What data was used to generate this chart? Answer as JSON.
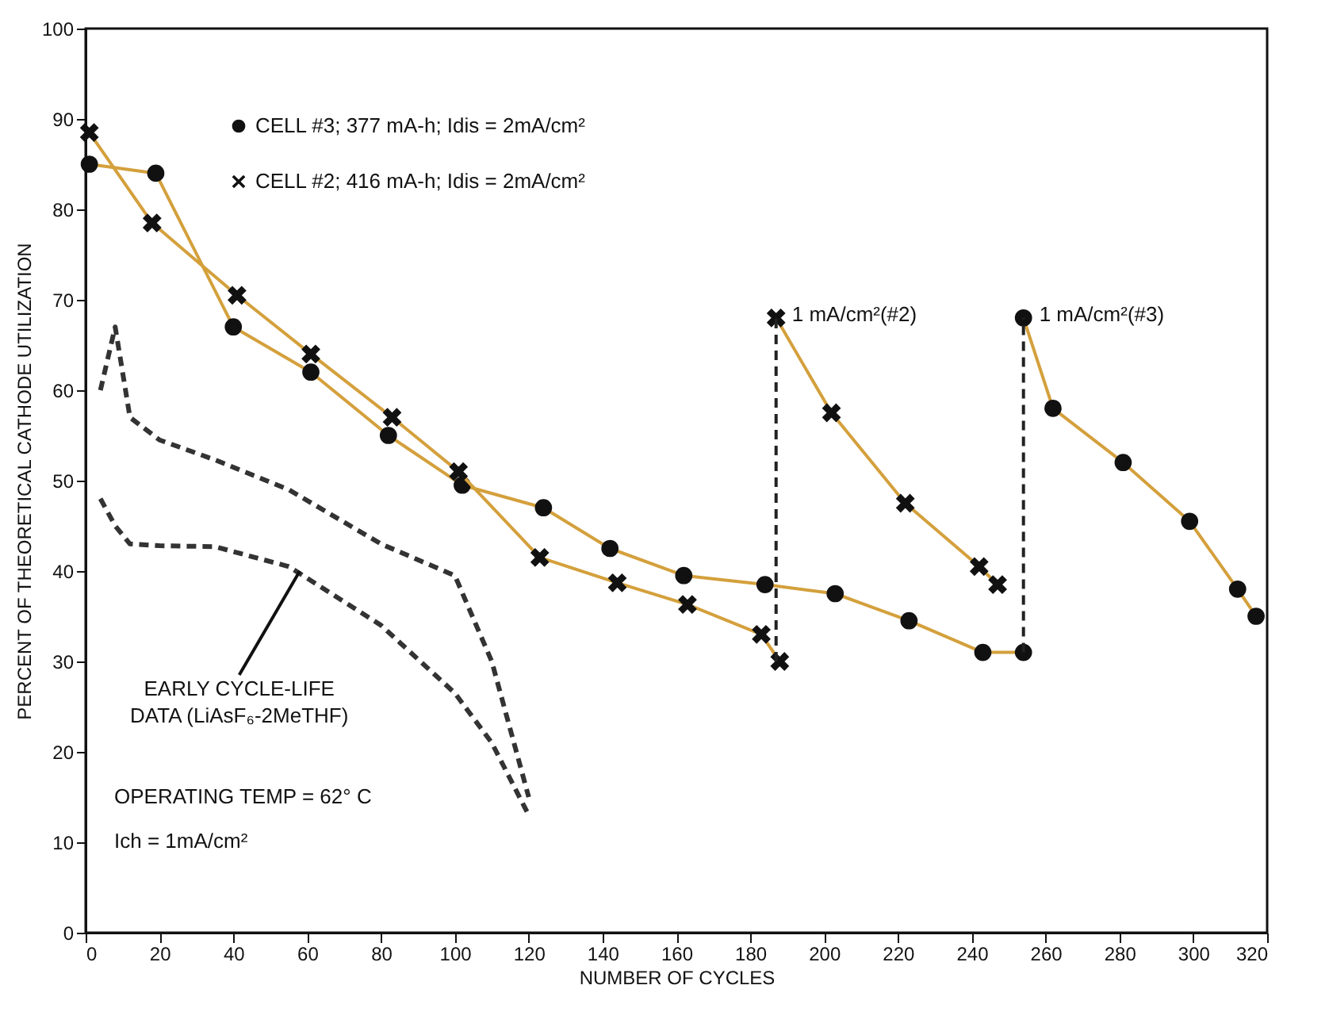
{
  "chart_data": {
    "type": "line",
    "xlabel": "NUMBER OF CYCLES",
    "ylabel": "PERCENT OF THEORETICAL CATHODE UTILIZATION",
    "xlim": [
      0,
      320
    ],
    "xticks": [
      0,
      20,
      40,
      60,
      80,
      100,
      120,
      140,
      160,
      180,
      200,
      220,
      240,
      260,
      280,
      300,
      320
    ],
    "ylim": [
      0,
      100
    ],
    "yticks": [
      0,
      10,
      20,
      30,
      40,
      50,
      60,
      70,
      80,
      90,
      100
    ],
    "grid": false,
    "legend": "top",
    "series": [
      {
        "name": "CELL #3; 377 mA-h; Idis = 2mA/cm²",
        "color": "#d4a03c",
        "marker": "circle",
        "line_style": "solid",
        "x": [
          1,
          19,
          40,
          61,
          82,
          102,
          124,
          142,
          162,
          184,
          203,
          223,
          243,
          254
        ],
        "values": [
          85,
          84,
          67,
          62,
          55,
          49.5,
          47,
          42.5,
          39.5,
          38.5,
          37.5,
          34.5,
          31,
          31
        ]
      },
      {
        "name": "CELL #2; 416 mA-h; Idis = 2mA/cm²",
        "color": "#d4a03c",
        "marker": "cross",
        "line_style": "solid",
        "x": [
          1,
          18,
          41,
          61,
          83,
          101,
          123,
          144,
          163,
          183,
          188
        ],
        "values": [
          88.5,
          78.5,
          70.5,
          64,
          57,
          51,
          41.5,
          38.7,
          36.3,
          33,
          30
        ]
      },
      {
        "color": "#d4a03c",
        "marker": "cross",
        "line_style": "solid",
        "x": [
          187,
          202,
          222,
          242,
          247
        ],
        "values": [
          68,
          57.5,
          47.5,
          40.5,
          38.5
        ]
      },
      {
        "color": "#d4a03c",
        "marker": "circle",
        "line_style": "solid",
        "x": [
          254,
          262,
          281,
          299,
          312,
          317
        ],
        "values": [
          68,
          58,
          52,
          45.5,
          38,
          35
        ]
      },
      {
        "color": "#222222",
        "marker": "none",
        "line_style": "dashed",
        "x": [
          187,
          187
        ],
        "values": [
          30,
          68
        ]
      },
      {
        "color": "#222222",
        "marker": "none",
        "line_style": "dashed",
        "x": [
          254,
          254
        ],
        "values": [
          31,
          68
        ]
      },
      {
        "color": "#333333",
        "marker": "none",
        "line_style": "dashed",
        "x": [
          4,
          8,
          12,
          20,
          35,
          55,
          80,
          100,
          110,
          120
        ],
        "values": [
          60,
          67,
          57,
          54.5,
          52.3,
          49,
          43,
          39.5,
          30,
          15
        ]
      },
      {
        "color": "#333333",
        "marker": "none",
        "line_style": "dashed",
        "x": [
          4,
          8,
          12,
          20,
          35,
          55,
          80,
          100,
          110,
          120
        ],
        "values": [
          48,
          45,
          43,
          42.8,
          42.7,
          40.5,
          34,
          26.5,
          21,
          13
        ]
      }
    ],
    "annotations": [
      {
        "text": "1 mA/cm²(#2)",
        "x": 187,
        "y": 68
      },
      {
        "text": "1 mA/cm²(#3)",
        "x": 254,
        "y": 68
      },
      {
        "text": "EARLY CYCLE-LIFE DATA (LiAsF₆-2MeTHF)",
        "x": 58,
        "y": 40
      },
      "OPERATING TEMP = 62° C",
      "Ich = 1mA/cm²"
    ]
  }
}
